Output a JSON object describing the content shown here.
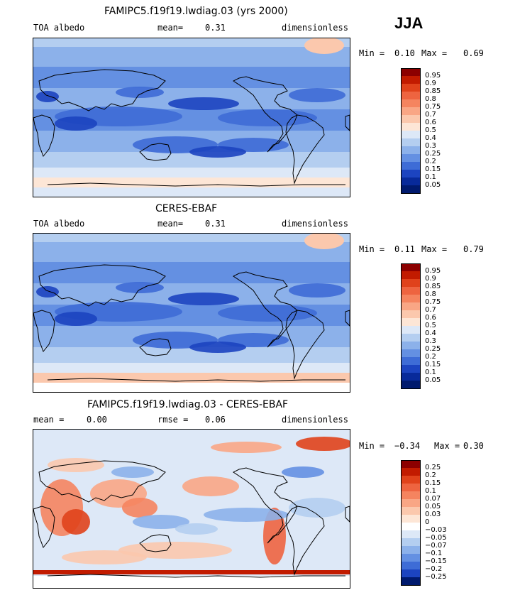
{
  "season": "JJA",
  "panels": [
    {
      "id": "model",
      "title": "FAMIPC5.f19f19.lwdiag.03 (yrs 2000)",
      "left_label": "TOA albedo",
      "stat1_label": "mean=",
      "stat1_value": "0.31",
      "stat2_label": "",
      "stat2_value": "",
      "units": "dimensionless",
      "min_label": "Min =",
      "min_value": "0.10",
      "max_label": "Max =",
      "max_value": "0.69",
      "colorbar": [
        "0.95",
        "0.9",
        "0.85",
        "0.8",
        "0.75",
        "0.7",
        "0.6",
        "0.5",
        "0.4",
        "0.3",
        "0.25",
        "0.2",
        "0.15",
        "0.1",
        "0.05"
      ],
      "kind": "abs"
    },
    {
      "id": "obs",
      "title": "CERES-EBAF",
      "left_label": "TOA albedo",
      "stat1_label": "mean=",
      "stat1_value": "0.31",
      "stat2_label": "",
      "stat2_value": "",
      "units": "dimensionless",
      "min_label": "Min =",
      "min_value": "0.11",
      "max_label": "Max =",
      "max_value": "0.79",
      "colorbar": [
        "0.95",
        "0.9",
        "0.85",
        "0.8",
        "0.75",
        "0.7",
        "0.6",
        "0.5",
        "0.4",
        "0.3",
        "0.25",
        "0.2",
        "0.15",
        "0.1",
        "0.05"
      ],
      "kind": "abs"
    },
    {
      "id": "diff",
      "title": "FAMIPC5.f19f19.lwdiag.03 - CERES-EBAF",
      "left_label": "mean =",
      "stat1_label": "",
      "stat1_value": "0.00",
      "stat2_label": "rmse =",
      "stat2_value": "0.06",
      "units": "dimensionless",
      "min_label": "Min =",
      "min_value": "−0.34",
      "max_label": "Max =",
      "max_value": "0.30",
      "colorbar": [
        "0.25",
        "0.2",
        "0.15",
        "0.1",
        "0.07",
        "0.05",
        "0.03",
        "0",
        "−0.03",
        "−0.05",
        "−0.07",
        "−0.1",
        "−0.15",
        "−0.2",
        "−0.25"
      ],
      "kind": "diff"
    }
  ],
  "colors": {
    "abs_scale": [
      "#8c0000",
      "#c21b00",
      "#e0421b",
      "#ee6440",
      "#f5845f",
      "#f9a685",
      "#fbc8ad",
      "#fde6d6",
      "#dde8f7",
      "#b4cef0",
      "#8cb1ea",
      "#6490e2",
      "#3e6cd6",
      "#1c44c0",
      "#082a9a",
      "#001a6e"
    ],
    "diff_scale": [
      "#8c0000",
      "#c21b00",
      "#e0421b",
      "#ee6440",
      "#f5845f",
      "#f9a685",
      "#fbc8ad",
      "#fde6d6",
      "#ffffff",
      "#dde8f7",
      "#b4cef0",
      "#8cb1ea",
      "#6490e2",
      "#3e6cd6",
      "#1c44c0",
      "#001a6e"
    ]
  },
  "chart_data": [
    {
      "type": "heatmap",
      "title": "FAMIPC5.f19f19.lwdiag.03 (yrs 2000)",
      "variable": "TOA albedo",
      "units": "dimensionless",
      "season": "JJA",
      "mean": 0.31,
      "min": 0.1,
      "max": 0.69,
      "contour_levels": [
        0.05,
        0.1,
        0.15,
        0.2,
        0.25,
        0.3,
        0.4,
        0.5,
        0.6,
        0.7,
        0.75,
        0.8,
        0.85,
        0.9,
        0.95
      ]
    },
    {
      "type": "heatmap",
      "title": "CERES-EBAF",
      "variable": "TOA albedo",
      "units": "dimensionless",
      "season": "JJA",
      "mean": 0.31,
      "min": 0.11,
      "max": 0.79,
      "contour_levels": [
        0.05,
        0.1,
        0.15,
        0.2,
        0.25,
        0.3,
        0.4,
        0.5,
        0.6,
        0.7,
        0.75,
        0.8,
        0.85,
        0.9,
        0.95
      ]
    },
    {
      "type": "heatmap",
      "title": "FAMIPC5.f19f19.lwdiag.03 - CERES-EBAF",
      "units": "dimensionless",
      "season": "JJA",
      "mean": 0.0,
      "rmse": 0.06,
      "min": -0.34,
      "max": 0.3,
      "contour_levels": [
        -0.25,
        -0.2,
        -0.15,
        -0.1,
        -0.07,
        -0.05,
        -0.03,
        0,
        0.03,
        0.05,
        0.07,
        0.1,
        0.15,
        0.2,
        0.25
      ]
    }
  ]
}
